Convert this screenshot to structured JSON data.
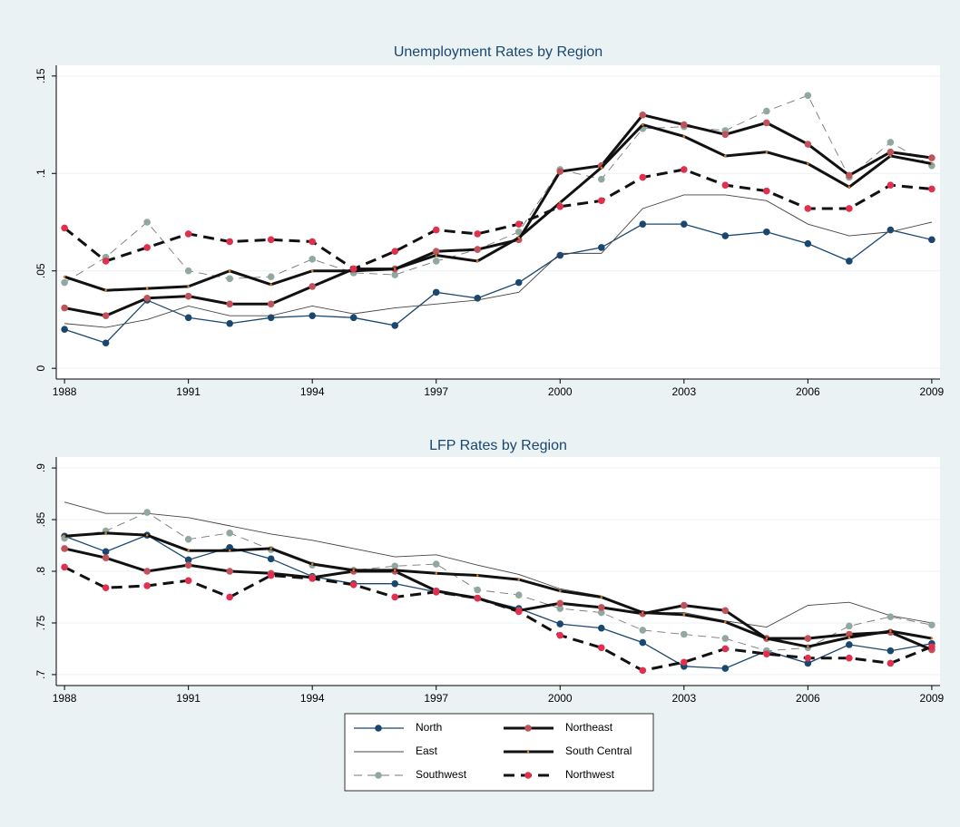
{
  "chart_data": [
    {
      "type": "line",
      "title": "Unemployment Rates by Region",
      "x": [
        1988,
        1989,
        1990,
        1991,
        1992,
        1993,
        1994,
        1995,
        1996,
        1997,
        1998,
        1999,
        2000,
        2001,
        2002,
        2003,
        2004,
        2005,
        2006,
        2007,
        2008,
        2009
      ],
      "xlim": [
        1987.8,
        2009.2
      ],
      "xticks": [
        1988,
        1991,
        1994,
        1997,
        2000,
        2003,
        2006,
        2009
      ],
      "ylim": [
        -0.0055,
        0.1555
      ],
      "yticks": [
        0,
        {
          "value": 0.05,
          "label": ".05"
        },
        {
          "value": 0.1,
          "label": ".1"
        },
        {
          "value": 0.15,
          "label": ".15"
        }
      ],
      "grid": true,
      "series": [
        {
          "name": "North",
          "color": "#1a476f",
          "marker_color": "#1a476f",
          "weight": "medium",
          "style": "solid",
          "marker": "circle",
          "values": [
            0.02,
            0.013,
            0.035,
            0.026,
            0.023,
            0.026,
            0.027,
            0.026,
            0.022,
            0.039,
            0.036,
            0.044,
            0.058,
            0.062,
            0.074,
            0.074,
            0.068,
            0.07,
            0.064,
            0.055,
            0.071,
            0.066
          ]
        },
        {
          "name": "East",
          "color": "#444444",
          "marker_color": "#444444",
          "weight": "thin",
          "style": "solid",
          "marker": "none",
          "values": [
            0.023,
            0.021,
            0.025,
            0.032,
            0.027,
            0.027,
            0.032,
            0.028,
            0.031,
            0.033,
            0.035,
            0.039,
            0.059,
            0.059,
            0.082,
            0.089,
            0.089,
            0.086,
            0.074,
            0.068,
            0.07,
            0.075
          ]
        },
        {
          "name": "Southwest",
          "color": "#777777",
          "marker_color": "#90a8a0",
          "weight": "thin",
          "style": "dash",
          "marker": "circle",
          "values": [
            0.044,
            0.057,
            0.075,
            0.05,
            0.046,
            0.047,
            0.056,
            0.049,
            0.048,
            0.055,
            0.061,
            0.07,
            0.102,
            0.097,
            0.123,
            0.124,
            0.122,
            0.132,
            0.14,
            0.098,
            0.116,
            0.104
          ]
        },
        {
          "name": "Northeast",
          "color": "#111111",
          "marker_color": "#c0525a",
          "weight": "thick",
          "style": "solid",
          "marker": "circle",
          "values": [
            0.031,
            0.027,
            0.036,
            0.037,
            0.033,
            0.033,
            0.042,
            0.051,
            0.051,
            0.06,
            0.061,
            0.066,
            0.101,
            0.104,
            0.13,
            0.125,
            0.12,
            0.126,
            0.115,
            0.099,
            0.111,
            0.108
          ]
        },
        {
          "name": "South Central",
          "color": "#111111",
          "marker_color": "#d97a2b",
          "weight": "thick",
          "style": "solid",
          "marker": "tiny",
          "values": [
            0.047,
            0.04,
            0.041,
            0.042,
            0.05,
            0.043,
            0.05,
            0.05,
            0.051,
            0.058,
            0.055,
            0.067,
            0.085,
            0.103,
            0.125,
            0.119,
            0.109,
            0.111,
            0.105,
            0.093,
            0.109,
            0.105
          ]
        },
        {
          "name": "Northwest",
          "color": "#111111",
          "marker_color": "#e0304e",
          "weight": "thick",
          "style": "longdash",
          "marker": "circle",
          "values": [
            0.072,
            0.055,
            0.062,
            0.069,
            0.065,
            0.066,
            0.065,
            0.051,
            0.06,
            0.071,
            0.069,
            0.074,
            0.083,
            0.086,
            0.098,
            0.102,
            0.094,
            0.091,
            0.082,
            0.082,
            0.094,
            0.092
          ]
        }
      ]
    },
    {
      "type": "line",
      "title": "LFP Rates by Region",
      "x": [
        1988,
        1989,
        1990,
        1991,
        1992,
        1993,
        1994,
        1995,
        1996,
        1997,
        1998,
        1999,
        2000,
        2001,
        2002,
        2003,
        2004,
        2005,
        2006,
        2007,
        2008,
        2009
      ],
      "xlim": [
        1987.8,
        2009.2
      ],
      "xticks": [
        1988,
        1991,
        1994,
        1997,
        2000,
        2003,
        2006,
        2009
      ],
      "ylim": [
        0.6894,
        0.9106
      ],
      "yticks": [
        {
          "value": 0.7,
          "label": ".7"
        },
        {
          "value": 0.75,
          "label": ".75"
        },
        {
          "value": 0.8,
          "label": ".8"
        },
        {
          "value": 0.85,
          "label": ".85"
        },
        {
          "value": 0.9,
          "label": ".9"
        }
      ],
      "grid": true,
      "series": [
        {
          "name": "North",
          "color": "#1a476f",
          "marker_color": "#1a476f",
          "weight": "medium",
          "style": "solid",
          "marker": "circle",
          "values": [
            0.834,
            0.819,
            0.835,
            0.811,
            0.823,
            0.812,
            0.795,
            0.788,
            0.788,
            0.78,
            0.774,
            0.764,
            0.749,
            0.745,
            0.731,
            0.708,
            0.706,
            0.723,
            0.711,
            0.729,
            0.723,
            0.73
          ]
        },
        {
          "name": "East",
          "color": "#444444",
          "marker_color": "#444444",
          "weight": "thin",
          "style": "solid",
          "marker": "none",
          "values": [
            0.867,
            0.856,
            0.856,
            0.852,
            0.844,
            0.836,
            0.83,
            0.822,
            0.814,
            0.816,
            0.806,
            0.797,
            0.783,
            0.776,
            0.76,
            0.76,
            0.752,
            0.746,
            0.767,
            0.77,
            0.757,
            0.75
          ]
        },
        {
          "name": "Southwest",
          "color": "#777777",
          "marker_color": "#90a8a0",
          "weight": "thin",
          "style": "dash",
          "marker": "circle",
          "values": [
            0.832,
            0.839,
            0.857,
            0.831,
            0.837,
            0.821,
            0.806,
            0.801,
            0.805,
            0.807,
            0.782,
            0.777,
            0.764,
            0.76,
            0.743,
            0.739,
            0.735,
            0.723,
            0.726,
            0.747,
            0.756,
            0.748
          ]
        },
        {
          "name": "Northeast",
          "color": "#111111",
          "marker_color": "#c0525a",
          "weight": "thick",
          "style": "solid",
          "marker": "circle",
          "values": [
            0.822,
            0.813,
            0.8,
            0.806,
            0.8,
            0.798,
            0.794,
            0.8,
            0.8,
            0.781,
            0.774,
            0.762,
            0.769,
            0.765,
            0.759,
            0.767,
            0.762,
            0.735,
            0.735,
            0.739,
            0.741,
            0.724
          ]
        },
        {
          "name": "South Central",
          "color": "#111111",
          "marker_color": "#d97a2b",
          "weight": "thick",
          "style": "solid",
          "marker": "tiny",
          "values": [
            0.834,
            0.837,
            0.835,
            0.82,
            0.82,
            0.822,
            0.807,
            0.801,
            0.801,
            0.798,
            0.796,
            0.792,
            0.781,
            0.775,
            0.76,
            0.758,
            0.751,
            0.735,
            0.727,
            0.736,
            0.742,
            0.735
          ]
        },
        {
          "name": "Northwest",
          "color": "#111111",
          "marker_color": "#e0304e",
          "weight": "thick",
          "style": "longdash",
          "marker": "circle",
          "values": [
            0.804,
            0.784,
            0.786,
            0.791,
            0.775,
            0.796,
            0.793,
            0.787,
            0.775,
            0.78,
            0.774,
            0.761,
            0.738,
            0.726,
            0.704,
            0.712,
            0.725,
            0.72,
            0.716,
            0.716,
            0.711,
            0.727
          ]
        }
      ]
    }
  ]
}
